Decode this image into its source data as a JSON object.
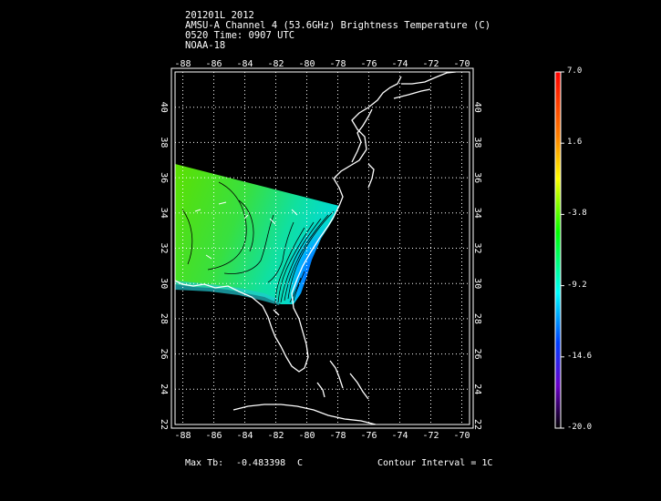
{
  "header": {
    "line1": "201201L 2012",
    "line2": "AMSU-A Channel 4 (53.6GHz) Brightness Temperature (C)",
    "line3": "0520 Time: 0907 UTC",
    "line4": "NOAA-18"
  },
  "footer": {
    "max_label": "Max Tb:",
    "max_value": "-0.483398",
    "max_unit": "C",
    "contour_label": "Contour Interval = 1C"
  },
  "map": {
    "lon_ticks": [
      "-88",
      "-86",
      "-84",
      "-82",
      "-80",
      "-78",
      "-76",
      "-74",
      "-72",
      "-70"
    ],
    "lon_values": [
      -88,
      -86,
      -84,
      -82,
      -80,
      -78,
      -76,
      -74,
      -72,
      -70
    ],
    "lat_ticks": [
      "22",
      "24",
      "26",
      "28",
      "30",
      "32",
      "34",
      "36",
      "38",
      "40"
    ],
    "lat_values": [
      22,
      24,
      26,
      28,
      30,
      32,
      34,
      36,
      38,
      40
    ],
    "lon_range": [
      -88.5,
      -69.5
    ],
    "lat_range": [
      22,
      42
    ],
    "grid": "dotted",
    "coastline_color": "#ffffff"
  },
  "colorbar": {
    "labels": [
      "7.0",
      "1.6",
      "-3.8",
      "-9.2",
      "-14.6",
      "-20.0"
    ],
    "values": [
      7.0,
      1.6,
      -3.8,
      -9.2,
      -14.6,
      -20.0
    ],
    "range": [
      -20.0,
      7.0
    ],
    "colormap": [
      "#ff0000",
      "#ff8000",
      "#ffff00",
      "#00ff00",
      "#00ffff",
      "#0000ff",
      "#6a00c8",
      "#000000"
    ]
  }
}
